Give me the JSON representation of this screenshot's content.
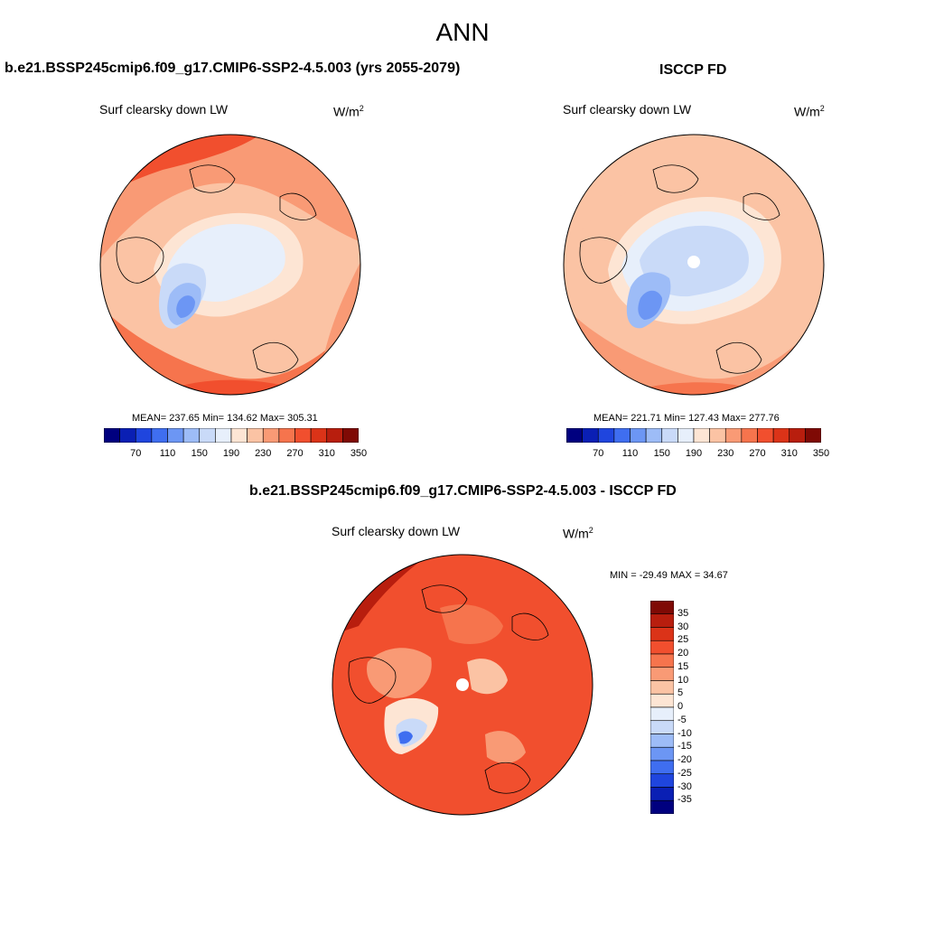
{
  "page_title": "ANN",
  "panels": [
    {
      "title": "b.e21.BSSP245cmip6.f09_g17.CMIP6-SSP2-4.5.003 (yrs 2055-2079)",
      "variable": "Surf clearsky down LW",
      "unit_base": "W/m",
      "unit_exp": "2",
      "stats": "MEAN= 237.65  Min= 134.62  Max= 305.31"
    },
    {
      "title": "ISCCP FD",
      "variable": "Surf clearsky down LW",
      "unit_base": "W/m",
      "unit_exp": "2",
      "stats": "MEAN= 221.71  Min= 127.43  Max= 277.76"
    },
    {
      "title": "b.e21.BSSP245cmip6.f09_g17.CMIP6-SSP2-4.5.003 - ISCCP FD",
      "variable": "Surf clearsky down LW",
      "unit_base": "W/m",
      "unit_exp": "2",
      "stats": "MIN = -29.49 MAX =  34.67"
    }
  ],
  "colorbar_abs": {
    "tick_labels": [
      "70",
      "110",
      "150",
      "190",
      "230",
      "270",
      "310",
      "350"
    ],
    "colors": [
      "#00007f",
      "#0a1fb4",
      "#1f45de",
      "#3f6ef0",
      "#6c96f4",
      "#9dbcf7",
      "#c9daf8",
      "#e7effb",
      "#fde5d4",
      "#fbc3a4",
      "#f99a75",
      "#f6744d",
      "#f14f2e",
      "#db3318",
      "#b81e0e",
      "#7f0a05"
    ]
  },
  "colorbar_diff": {
    "tick_labels": [
      "35",
      "30",
      "25",
      "20",
      "15",
      "10",
      "5",
      "0",
      "-5",
      "-10",
      "-15",
      "-20",
      "-25",
      "-30",
      "-35"
    ],
    "colors": [
      "#7f0a05",
      "#b81e0e",
      "#db3318",
      "#f14f2e",
      "#f6744d",
      "#f99a75",
      "#fbc3a4",
      "#fde5d4",
      "#e7effb",
      "#c9daf8",
      "#9dbcf7",
      "#6c96f4",
      "#3f6ef0",
      "#1f45de",
      "#0a1fb4",
      "#00007f"
    ]
  }
}
